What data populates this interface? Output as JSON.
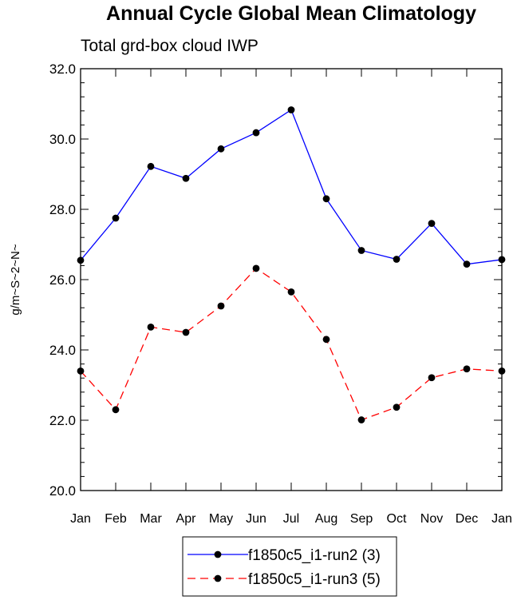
{
  "chart_data": {
    "type": "line",
    "title": "Annual Cycle Global Mean Climatology",
    "subtitle": "Total grd-box cloud IWP",
    "xlabel": "",
    "ylabel": "g/m~S~2~N~",
    "categories": [
      "Jan",
      "Feb",
      "Mar",
      "Apr",
      "May",
      "Jun",
      "Jul",
      "Aug",
      "Sep",
      "Oct",
      "Nov",
      "Dec",
      "Jan"
    ],
    "ylim": [
      20.0,
      32.0
    ],
    "yticks": [
      "20.0",
      "22.0",
      "24.0",
      "26.0",
      "28.0",
      "30.0",
      "32.0"
    ],
    "grid": false,
    "legend_position": "bottom-center",
    "series": [
      {
        "name": "f1850c5_i1-run2 (3)",
        "color": "#0000ff",
        "line_style": "solid",
        "marker": "filled-circle",
        "values": [
          26.55,
          27.75,
          29.22,
          28.88,
          29.72,
          30.18,
          30.83,
          28.3,
          26.83,
          26.58,
          27.6,
          26.44,
          26.57
        ]
      },
      {
        "name": "f1850c5_i1-run3 (5)",
        "color": "#ff0000",
        "line_style": "dashed",
        "marker": "filled-circle",
        "values": [
          23.4,
          22.3,
          24.65,
          24.5,
          25.25,
          26.32,
          25.65,
          24.3,
          22.01,
          22.37,
          23.21,
          23.46,
          23.4
        ]
      }
    ]
  }
}
